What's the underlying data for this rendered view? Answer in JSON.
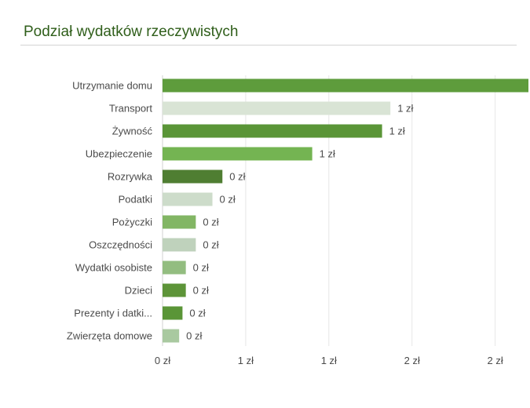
{
  "title": "Podział wydatków rzeczywistych",
  "chart_data": {
    "type": "bar",
    "orientation": "horizontal",
    "title": "Podział wydatków rzeczywistych",
    "categories": [
      "Utrzymanie domu",
      "Transport",
      "Żywność",
      "Ubezpieczenie",
      "Rozrywka",
      "Podatki",
      "Pożyczki",
      "Oszczędności",
      "Wydatki osobiste",
      "Dzieci",
      "Prezenty i datki...",
      "Zwierzęta domowe"
    ],
    "values": [
      2.2,
      1.37,
      1.32,
      0.9,
      0.36,
      0.3,
      0.2,
      0.2,
      0.14,
      0.14,
      0.12,
      0.1
    ],
    "value_labels": [
      "",
      "1 zł",
      "1 zł",
      "1 zł",
      "0 zł",
      "0 zł",
      "0 zł",
      "0 zł",
      "0 zł",
      "0 zł",
      "0 zł",
      "0 zł"
    ],
    "colors": [
      "#5e9c3c",
      "#d9e4d5",
      "#5a9537",
      "#74b452",
      "#4f7e32",
      "#cddcca",
      "#82b664",
      "#bfd2bc",
      "#93bd80",
      "#5d9438",
      "#5a9537",
      "#a9c9a0"
    ],
    "xlim": [
      0,
      2.2
    ],
    "xticks": [
      0,
      0.5,
      1.0,
      1.5,
      2.0
    ],
    "xtick_labels": [
      "0 zł",
      "1 zł",
      "1 zł",
      "2 zł",
      "2 zł"
    ],
    "grid": true,
    "legend": "none"
  }
}
